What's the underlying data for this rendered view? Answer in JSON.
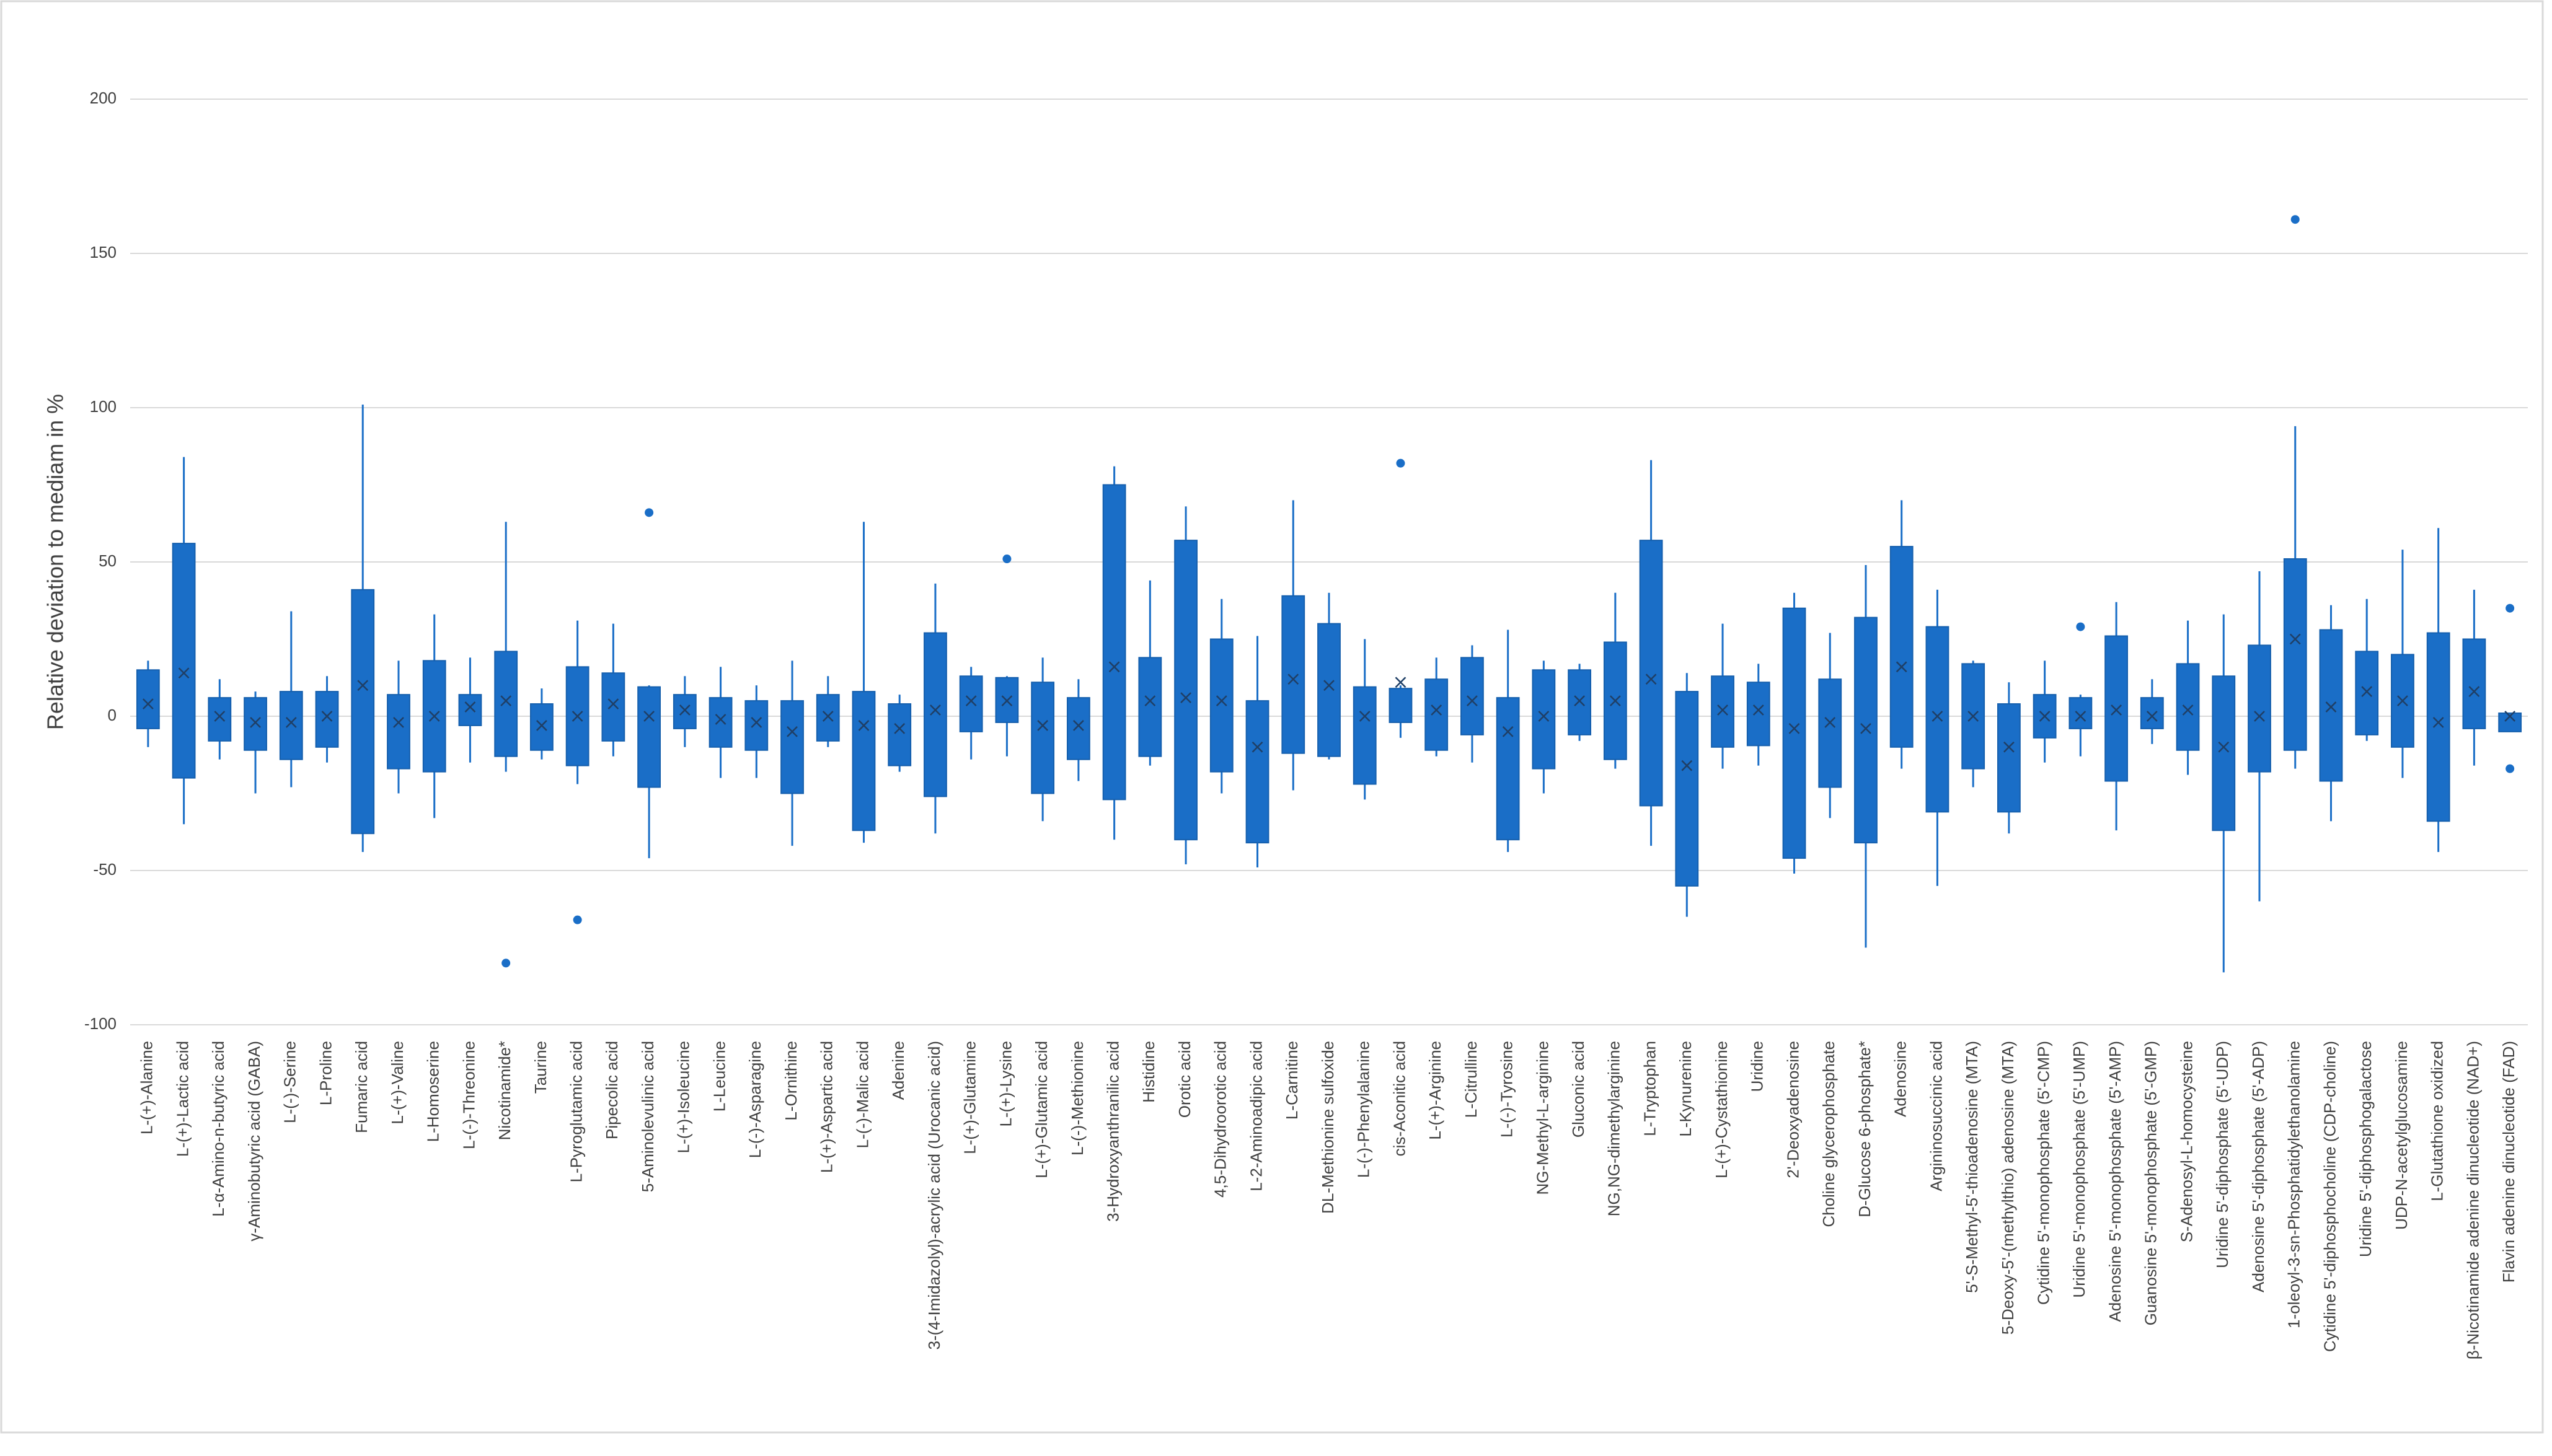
{
  "chart_data": {
    "type": "box",
    "y_label": "Relative deviation to mediam in %",
    "categories": [
      "L-(+)-Alanine",
      "L-(+)-Lactic acid",
      "L-α-Amino-n-butyric acid",
      "γ-Aminobutyric acid (GABA)",
      "L-(-)-Serine",
      "L-Proline",
      "Fumaric acid",
      "L-(+)-Valine",
      "L-Homoserine",
      "L-(-)-Threonine",
      "Nicotinamide*",
      "Taurine",
      "L-Pyroglutamic acid",
      "Pipecolic acid",
      "5-Aminolevulinic acid",
      "L-(+)-Isoleucine",
      "L-Leucine",
      "L-(-)-Asparagine",
      "L-Ornithine",
      "L-(+)-Aspartic acid",
      "L-(-)-Malic acid",
      "Adenine",
      "3-(4-Imidazolyl)-acrylic acid (Urocanic acid)",
      "L-(+)-Glutamine",
      "L-(+)-Lysine",
      "L-(+)-Glutamic acid",
      "L-(-)-Methionine",
      "3-Hydroxyanthranilic acid",
      "Histidine",
      "Orotic acid",
      "4,5-Dihydroorotic acid",
      "L-2-Aminoadipic acid",
      "L-Carnitine",
      "DL-Methionine sulfoxide",
      "L-(-)-Phenylalanine",
      "cis-Aconitic acid",
      "L-(+)-Arginine",
      "L-Citrulline",
      "L-(-)-Tyrosine",
      "NG-Methyl-L-arginine",
      "Gluconic acid",
      "NG,NG-dimethylarginine",
      "L-Tryptophan",
      "L-Kynurenine",
      "L-(+)-Cystathionine",
      "Uridine",
      "2'-Deoxyadenosine",
      "Choline glycerophosphate",
      "D-Glucose 6-phosphate*",
      "Adenosine",
      "Argininosuccinic acid",
      "5'-S-Methyl-5'-thioadenosine (MTA)",
      "5-Deoxy-5'-(methylthio) adenosine (MTA)",
      "Cytidine 5'-monophosphate (5'-CMP)",
      "Uridine 5'-monophosphate (5'-UMP)",
      "Adenosine 5'-monophosphate (5'-AMP)",
      "Guanosine 5'-monophosphate (5'-GMP)",
      "S-Adenosyl-L-homocysteine",
      "Uridine 5'-diphosphate (5'-UDP)",
      "Adenosine 5'-diphosphate (5'-ADP)",
      "1-oleoyl-3-sn-Phosphatidylethanolamine",
      "Cytidine 5'-diphosphocholine (CDP-choline)",
      "Uridine 5'-diphosphogalactose",
      "UDP-N-acetylglucosamine",
      "L-Glutathione oxidized",
      "β-Nicotinamide adenine dinucleotide (NAD+)",
      "Flavin adenine dinucleotide (FAD)"
    ],
    "max": [
      18,
      84,
      12,
      8,
      34,
      13,
      101,
      18,
      33,
      19,
      63,
      9,
      31,
      30,
      10,
      13,
      16,
      10,
      18,
      13,
      63,
      7,
      43,
      16,
      13,
      19,
      12,
      81,
      44,
      68,
      38,
      26,
      70,
      40,
      25,
      10,
      19,
      23,
      28,
      18,
      17,
      40,
      83,
      14,
      30,
      17,
      40,
      27,
      49,
      70,
      41,
      18,
      11,
      18,
      7,
      37,
      12,
      31,
      33,
      47,
      94,
      36,
      38,
      54,
      61,
      41,
      1
    ],
    "q3": [
      15,
      56,
      6,
      6,
      8,
      8,
      41,
      7,
      18,
      7,
      21,
      4,
      16,
      14,
      9.5,
      7,
      6,
      5,
      5,
      7,
      8,
      4,
      27,
      13,
      12.5,
      11,
      6,
      75,
      19,
      57,
      25,
      5,
      39,
      30,
      9.5,
      9,
      12,
      19,
      6,
      15,
      15,
      24,
      57,
      8,
      13,
      11,
      35,
      12,
      32,
      55,
      29,
      17,
      4,
      7,
      6,
      26,
      6,
      17,
      13,
      23,
      51,
      28,
      21,
      20,
      27,
      25,
      1
    ],
    "q1": [
      -4,
      -20,
      -8,
      -11,
      -14,
      -10,
      -38,
      -17,
      -18,
      -3,
      -13,
      -11,
      -16,
      -8,
      -23,
      -4,
      -10,
      -11,
      -25,
      -8,
      -37,
      -16,
      -26,
      -5,
      -2,
      -25,
      -14,
      -27,
      -13,
      -40,
      -18,
      -41,
      -12,
      -13,
      -22,
      -2,
      -11,
      -6,
      -40,
      -17,
      -6,
      -14,
      -29,
      -55,
      -10,
      -9.5,
      -46,
      -23,
      -41,
      -10,
      -31,
      -17,
      -31,
      -7,
      -4,
      -21,
      -4,
      -11,
      -37,
      -18,
      -11,
      -21,
      -6,
      -10,
      -34,
      -4,
      -5
    ],
    "min": [
      -10,
      -35,
      -14,
      -25,
      -23,
      -15,
      -44,
      -25,
      -33,
      -15,
      -18,
      -14,
      -22,
      -13,
      -46,
      -10,
      -20,
      -20,
      -42,
      -10,
      -41,
      -18,
      -38,
      -14,
      -13,
      -34,
      -21,
      -40,
      -16,
      -48,
      -25,
      -49,
      -24,
      -14,
      -27,
      -7,
      -13,
      -15,
      -44,
      -25,
      -8,
      -17,
      -42,
      -65,
      -17,
      -16,
      -51,
      -33,
      -75,
      -17,
      -55,
      -23,
      -38,
      -15,
      -13,
      -37,
      -9,
      -19,
      -83,
      -60,
      -17,
      -34,
      -8,
      -20,
      -44,
      -16,
      -5
    ],
    "mean": [
      4,
      14,
      0,
      -2,
      -2,
      0,
      10,
      -2,
      0,
      3,
      5,
      -3,
      0,
      4,
      0,
      2,
      -1,
      -2,
      -5,
      0,
      -3,
      -4,
      2,
      5,
      5,
      -3,
      -3,
      16,
      5,
      6,
      5,
      -10,
      12,
      10,
      0,
      11,
      2,
      5,
      -5,
      0,
      5,
      5,
      12,
      -16,
      2,
      2,
      -4,
      -2,
      -4,
      16,
      0,
      0,
      -10,
      0,
      0,
      2,
      0,
      2,
      -10,
      0,
      25,
      3,
      8,
      5,
      -2,
      8,
      0
    ],
    "outliers": [
      [],
      [],
      [],
      [],
      [],
      [],
      [],
      [],
      [],
      [],
      [
        -80
      ],
      [],
      [
        -66
      ],
      [],
      [
        66
      ],
      [],
      [],
      [],
      [],
      [],
      [],
      [],
      [],
      [],
      [
        51
      ],
      [],
      [],
      [],
      [],
      [],
      [],
      [],
      [],
      [],
      [],
      [
        82
      ],
      [],
      [],
      [],
      [],
      [],
      [],
      [],
      [],
      [],
      [],
      [],
      [],
      [],
      [],
      [],
      [],
      [],
      [],
      [
        29
      ],
      [],
      [],
      [],
      [],
      [],
      [
        161
      ],
      [],
      [],
      [],
      [],
      [],
      [
        35,
        -17
      ]
    ],
    "color": "#1a6ec7",
    "ylim": [
      -100,
      200
    ],
    "yticks": [
      -100,
      -50,
      0,
      50,
      100,
      150,
      200
    ],
    "grid": true
  }
}
